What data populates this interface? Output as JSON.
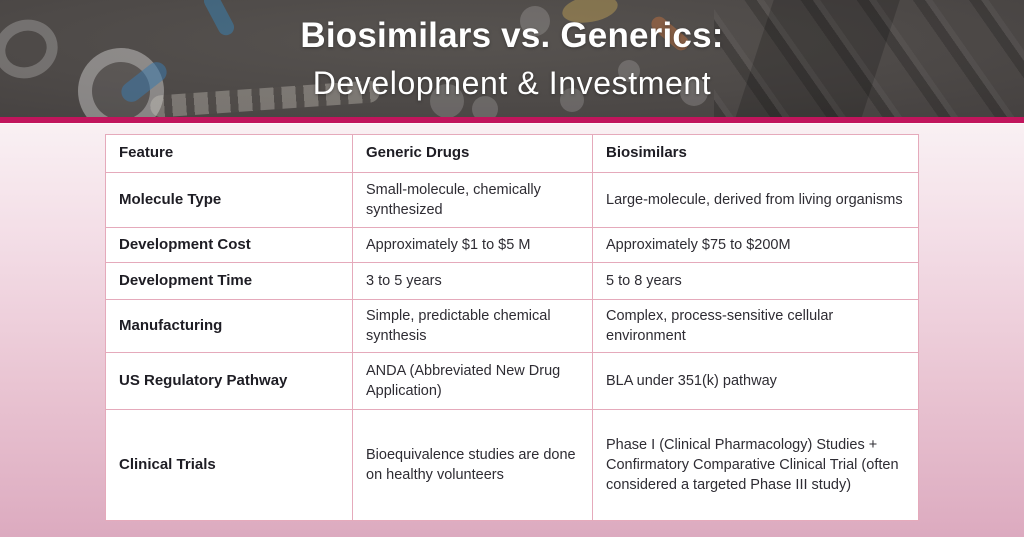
{
  "header": {
    "title_line1": "Biosimilars vs. Generics:",
    "title_line2": "Development & Investment"
  },
  "table": {
    "columns": [
      "Feature",
      "Generic Drugs",
      "Biosimilars"
    ],
    "rows": [
      {
        "feature": "Molecule Type",
        "generic": "Small-molecule, chemically synthesized",
        "biosimilar": "Large-molecule, derived from living organisms"
      },
      {
        "feature": "Development Cost",
        "generic": "Approximately $1 to $5 M",
        "biosimilar": "Approximately $75 to $200M"
      },
      {
        "feature": "Development Time",
        "generic": "3 to 5 years",
        "biosimilar": "5 to 8 years"
      },
      {
        "feature": "Manufacturing",
        "generic": "Simple, predictable chemical synthesis",
        "biosimilar": "Complex, process-sensitive cellular environment"
      },
      {
        "feature": "US Regulatory Pathway",
        "generic": "ANDA (Abbreviated New Drug Application)",
        "biosimilar": "BLA under 351(k) pathway"
      },
      {
        "feature": "Clinical Trials",
        "generic": "Bioequivalence studies are done on healthy volunteers",
        "biosimilar": "Phase I (Clinical Pharmacology) Studies + Confirmatory Comparative Clinical Trial (often considered a targeted Phase III study)"
      }
    ]
  },
  "colors": {
    "accent_bar": "#c1155c",
    "table_border": "#e5aabb",
    "banner_background": "#4e4a48",
    "page_pink": "#e0b2c5"
  }
}
